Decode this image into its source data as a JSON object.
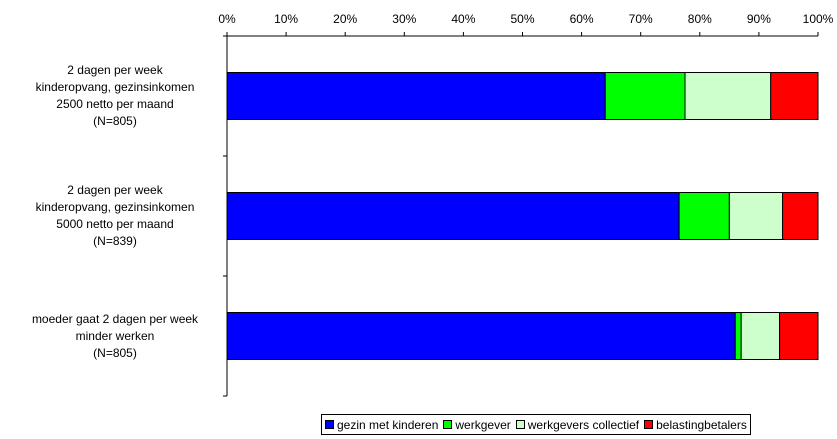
{
  "chart_data": {
    "type": "bar",
    "orientation": "horizontal",
    "stacked": "percent",
    "x_ticks": [
      "0%",
      "10%",
      "20%",
      "30%",
      "40%",
      "50%",
      "60%",
      "70%",
      "80%",
      "90%",
      "100%"
    ],
    "xlim": [
      0,
      100
    ],
    "x_axis_position": "top",
    "grid": false,
    "legend_position": "bottom-right",
    "categories": [
      {
        "lines": [
          "2 dagen per week",
          "kinderopvang, gezinsinkomen",
          "2500 netto per maand",
          "(N=805)"
        ]
      },
      {
        "lines": [
          "2 dagen per week",
          "kinderopvang, gezinsinkomen",
          "5000 netto per maand",
          "(N=839)"
        ]
      },
      {
        "lines": [
          "moeder gaat 2 dagen per week",
          "minder werken",
          "(N=805)"
        ]
      }
    ],
    "series": [
      {
        "name": "gezin met kinderen",
        "color": "#0000FF",
        "values": [
          64,
          76.5,
          86
        ]
      },
      {
        "name": "werkgever",
        "color": "#00FF00",
        "values": [
          13.5,
          8.5,
          1
        ]
      },
      {
        "name": "werkgevers collectief",
        "color": "#CCFFCC",
        "values": [
          14.5,
          9,
          6.5
        ]
      },
      {
        "name": "belastingbetalers",
        "color": "#FF0000",
        "values": [
          8,
          6,
          6.5
        ]
      }
    ]
  }
}
